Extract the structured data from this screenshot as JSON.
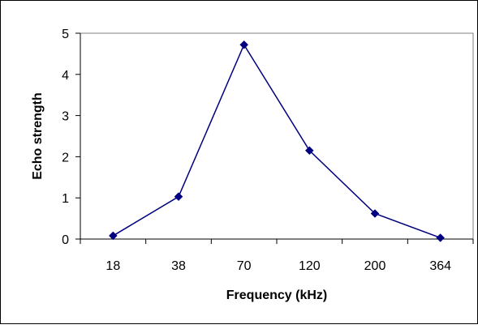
{
  "chart_data": {
    "type": "line",
    "title": "",
    "xlabel": "Frequency (kHz)",
    "ylabel": "Echo strength",
    "categories": [
      "18",
      "38",
      "70",
      "120",
      "200",
      "364"
    ],
    "series": [
      {
        "values": [
          0.08,
          1.03,
          4.72,
          2.15,
          0.62,
          0.03
        ]
      }
    ],
    "ylim": [
      0,
      5
    ],
    "yticks": [
      "0",
      "1",
      "2",
      "3",
      "4",
      "5"
    ],
    "grid": false,
    "legend": "none",
    "marker": "diamond",
    "line_color": "#000080"
  }
}
